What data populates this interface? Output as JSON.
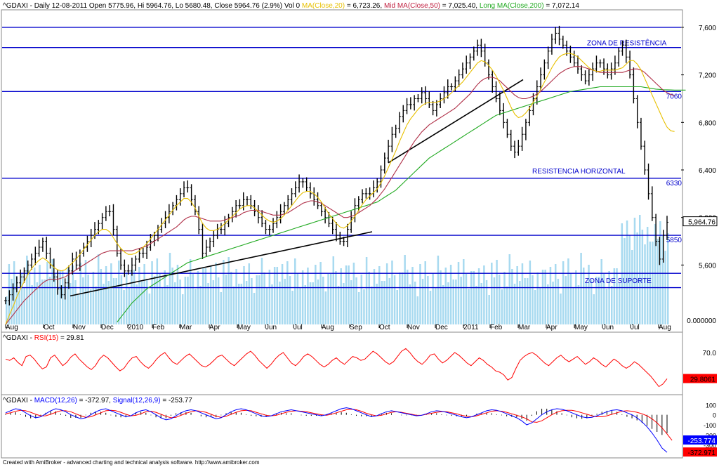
{
  "header": {
    "main": "^GDAXI - Daily 12-08-2011 Open 5775.96, Hi 5964.76, Lo 5680.48, Close 5964.76 (2.9%) Vol 0",
    "ma20": "MA(Close,20)",
    "ma20_val": " = 6,723.26,",
    "ma50": "Mid MA(Close,50)",
    "ma50_val": " = 7,025.40,",
    "ma200": "Long MA(Close,200)",
    "ma200_val": " = 7,072.14"
  },
  "rsi_header": {
    "name": "^GDAXI - ",
    "label": "RSI(15)",
    "val": " = 29.81"
  },
  "macd_header": {
    "name": "^GDAXI - ",
    "label": "MACD(12,26)",
    "val": " = -372.97, ",
    "sig": "Signal(12,26,9)",
    "sig_val": " = -253.77"
  },
  "footer": "Created with AmiBroker - advanced charting and technical analysis software. http://www.amibroker.com",
  "colors": {
    "price": "#000000",
    "ma20": "#e8c000",
    "ma50": "#b03048",
    "ma200": "#22aa22",
    "volume": "#a8daf0",
    "hline": "#0000cc",
    "rsi": "#ff0000",
    "macd": "#0000ff",
    "signal": "#ff0000",
    "trend": "#000000"
  },
  "chart_data": [
    {
      "type": "line",
      "title": "^GDAXI - Daily",
      "x_tick_labels": [
        "Aug",
        "Oct",
        "Nov",
        "Dec",
        "2010",
        "Feb",
        "Mar",
        "Apr",
        "May",
        "Jun",
        "Jul",
        "Aug",
        "Sep",
        "Oct",
        "Nov",
        "Dec",
        "2011",
        "Feb",
        "Mar",
        "Apr",
        "May",
        "Jun",
        "Jul",
        "Aug"
      ],
      "y_ticks": [
        "7,600",
        "7,200",
        "6,800",
        "6,400",
        "6,000",
        "5,600"
      ],
      "ylim": [
        5100,
        7700
      ],
      "last_close_label": "5,964.76",
      "volume_label": "0.000000",
      "horizontal_levels": [
        {
          "value": 7600,
          "label": ""
        },
        {
          "value": 7430,
          "label": "ZONA DE RESISTÊNCIA"
        },
        {
          "value": 7060,
          "label": "7060"
        },
        {
          "value": 6330,
          "label": "6330"
        },
        {
          "value": 5850,
          "label": "5850"
        },
        {
          "value": 5530,
          "label": "ZONA DE SUPORTE"
        },
        {
          "value": 5410,
          "label": ""
        }
      ],
      "annotations": [
        "RESISTENCIA HORIZONTAL"
      ],
      "series_names": [
        "MA(Close,20)",
        "Mid MA(Close,50)",
        "Long MA(Close,200)"
      ],
      "close": [
        5300,
        5350,
        5400,
        5450,
        5500,
        5550,
        5600,
        5650,
        5700,
        5750,
        5800,
        5700,
        5600,
        5500,
        5400,
        5350,
        5450,
        5550,
        5650,
        5600,
        5700,
        5750,
        5800,
        5850,
        5900,
        5950,
        6000,
        6050,
        6050,
        5900,
        5700,
        5600,
        5550,
        5550,
        5600,
        5650,
        5700,
        5700,
        5750,
        5800,
        5850,
        5900,
        5950,
        6000,
        6050,
        6100,
        6150,
        6200,
        6250,
        6250,
        6150,
        6050,
        5900,
        5700,
        5750,
        5800,
        5850,
        5900,
        5900,
        5950,
        6000,
        6050,
        6100,
        6100,
        6150,
        6150,
        6100,
        6050,
        6000,
        5950,
        5900,
        5900,
        5950,
        6000,
        6050,
        6100,
        6150,
        6200,
        6250,
        6300,
        6300,
        6250,
        6200,
        6150,
        6100,
        6050,
        6000,
        5950,
        5900,
        5850,
        5800,
        5800,
        5900,
        6000,
        6100,
        6150,
        6200,
        6200,
        6200,
        6250,
        6300,
        6400,
        6500,
        6600,
        6700,
        6750,
        6850,
        6900,
        6950,
        6950,
        7000,
        7000,
        7050,
        7000,
        6950,
        6900,
        6950,
        7000,
        7050,
        7100,
        7100,
        7150,
        7200,
        7250,
        7300,
        7350,
        7400,
        7450,
        7400,
        7300,
        7200,
        7100,
        7000,
        6900,
        6800,
        6700,
        6600,
        6550,
        6600,
        6700,
        6800,
        6900,
        7000,
        7100,
        7200,
        7300,
        7400,
        7500,
        7550,
        7500,
        7450,
        7400,
        7350,
        7300,
        7250,
        7200,
        7150,
        7200,
        7250,
        7300,
        7300,
        7250,
        7200,
        7250,
        7300,
        7400,
        7450,
        7350,
        7200,
        7000,
        6800,
        6600,
        6400,
        6200,
        6000,
        5800,
        5650,
        5850,
        5960
      ],
      "ma20": [
        5100,
        5180,
        5250,
        5330,
        5400,
        5460,
        5520,
        5570,
        5610,
        5640,
        5660,
        5640,
        5610,
        5580,
        5560,
        5550,
        5560,
        5590,
        5620,
        5650,
        5690,
        5730,
        5770,
        5810,
        5850,
        5880,
        5900,
        5900,
        5880,
        5830,
        5780,
        5740,
        5710,
        5690,
        5690,
        5700,
        5720,
        5750,
        5780,
        5820,
        5860,
        5900,
        5940,
        5980,
        6020,
        6060,
        6100,
        6130,
        6160,
        6160,
        6130,
        6080,
        6010,
        5950,
        5910,
        5890,
        5890,
        5900,
        5920,
        5950,
        5980,
        6010,
        6040,
        6070,
        6090,
        6100,
        6100,
        6080,
        6050,
        6020,
        5990,
        5970,
        5960,
        5970,
        5990,
        6020,
        6060,
        6100,
        6140,
        6180,
        6210,
        6220,
        6220,
        6200,
        6170,
        6130,
        6080,
        6030,
        5990,
        5950,
        5920,
        5910,
        5930,
        5970,
        6010,
        6060,
        6110,
        6150,
        6180,
        6210,
        6240,
        6290,
        6350,
        6420,
        6490,
        6560,
        6640,
        6710,
        6780,
        6830,
        6870,
        6910,
        6940,
        6960,
        6970,
        6970,
        6970,
        6980,
        7000,
        7020,
        7050,
        7080,
        7110,
        7140,
        7180,
        7220,
        7260,
        7300,
        7320,
        7310,
        7280,
        7240,
        7190,
        7130,
        7070,
        7000,
        6930,
        6870,
        6840,
        6850,
        6880,
        6920,
        6970,
        7020,
        7080,
        7140,
        7200,
        7260,
        7310,
        7350,
        7370,
        7380,
        7380,
        7370,
        7350,
        7320,
        7290,
        7260,
        7240,
        7230,
        7230,
        7240,
        7240,
        7240,
        7240,
        7250,
        7260,
        7290,
        7320,
        7320,
        7290,
        7240,
        7170,
        7100,
        7030,
        6960,
        6890,
        6820,
        6760,
        6730,
        6723
      ],
      "ma50": [
        5100,
        5140,
        5180,
        5220,
        5260,
        5300,
        5330,
        5360,
        5390,
        5420,
        5450,
        5470,
        5480,
        5480,
        5480,
        5490,
        5500,
        5520,
        5540,
        5560,
        5580,
        5600,
        5620,
        5640,
        5660,
        5680,
        5700,
        5710,
        5720,
        5720,
        5720,
        5720,
        5720,
        5720,
        5720,
        5730,
        5740,
        5750,
        5760,
        5780,
        5800,
        5820,
        5840,
        5860,
        5880,
        5900,
        5920,
        5950,
        5980,
        6000,
        6010,
        6010,
        6000,
        5990,
        5980,
        5970,
        5970,
        5970,
        5970,
        5980,
        5990,
        6000,
        6010,
        6020,
        6040,
        6050,
        6060,
        6060,
        6060,
        6050,
        6040,
        6030,
        6020,
        6020,
        6020,
        6030,
        6040,
        6060,
        6080,
        6100,
        6120,
        6130,
        6140,
        6140,
        6130,
        6120,
        6100,
        6080,
        6060,
        6040,
        6020,
        6000,
        6000,
        6010,
        6020,
        6040,
        6060,
        6080,
        6100,
        6130,
        6160,
        6200,
        6240,
        6290,
        6340,
        6390,
        6440,
        6490,
        6540,
        6590,
        6640,
        6680,
        6720,
        6750,
        6780,
        6800,
        6820,
        6840,
        6860,
        6880,
        6900,
        6920,
        6950,
        6980,
        7010,
        7040,
        7080,
        7120,
        7150,
        7170,
        7180,
        7180,
        7170,
        7150,
        7120,
        7090,
        7060,
        7030,
        7010,
        7000,
        7000,
        7010,
        7020,
        7040,
        7060,
        7090,
        7120,
        7150,
        7180,
        7210,
        7230,
        7250,
        7260,
        7270,
        7270,
        7270,
        7260,
        7250,
        7240,
        7230,
        7220,
        7220,
        7220,
        7220,
        7220,
        7220,
        7220,
        7230,
        7240,
        7250,
        7250,
        7240,
        7220,
        7190,
        7160,
        7130,
        7100,
        7070,
        7050,
        7035,
        7025
      ],
      "ma200": [
        null,
        null,
        null,
        null,
        null,
        null,
        null,
        null,
        null,
        null,
        null,
        null,
        null,
        null,
        null,
        null,
        null,
        null,
        null,
        null,
        null,
        null,
        null,
        null,
        null,
        null,
        null,
        null,
        null,
        null,
        5120,
        5160,
        5200,
        5240,
        5280,
        5310,
        5340,
        5370,
        5400,
        5420,
        5440,
        5460,
        5480,
        5500,
        5520,
        5540,
        5560,
        5580,
        5600,
        5620,
        5630,
        5640,
        5650,
        5660,
        5670,
        5680,
        5690,
        5700,
        5710,
        5720,
        5730,
        5740,
        5750,
        5760,
        5770,
        5780,
        5790,
        5800,
        5810,
        5820,
        5830,
        5840,
        5850,
        5860,
        5870,
        5880,
        5890,
        5900,
        5910,
        5920,
        5930,
        5940,
        5950,
        5960,
        5970,
        5980,
        5990,
        6000,
        6010,
        6020,
        6030,
        6040,
        6050,
        6060,
        6070,
        6080,
        6090,
        6100,
        6110,
        6120,
        6130,
        6150,
        6170,
        6190,
        6210,
        6230,
        6260,
        6290,
        6320,
        6350,
        6380,
        6410,
        6440,
        6470,
        6500,
        6520,
        6540,
        6560,
        6580,
        6600,
        6620,
        6640,
        6660,
        6680,
        6700,
        6720,
        6740,
        6760,
        6780,
        6800,
        6820,
        6840,
        6860,
        6870,
        6880,
        6890,
        6900,
        6910,
        6920,
        6930,
        6940,
        6950,
        6960,
        6970,
        6980,
        6990,
        7000,
        7010,
        7020,
        7030,
        7040,
        7050,
        7060,
        7065,
        7070,
        7075,
        7080,
        7085,
        7090,
        7095,
        7100,
        7100,
        7100,
        7100,
        7100,
        7100,
        7100,
        7100,
        7100,
        7100,
        7100,
        7100,
        7095,
        7090,
        7085,
        7080,
        7078,
        7075,
        7074,
        7073,
        7072,
        7072,
        7072,
        7072
      ]
    },
    {
      "type": "line",
      "title": "RSI(15)",
      "value": 29.81,
      "last_label": "29.8061",
      "y_ticks": [
        "70.0",
        "30.0"
      ],
      "ylim": [
        10,
        85
      ],
      "values": [
        60,
        58,
        62,
        55,
        50,
        64,
        66,
        60,
        52,
        45,
        48,
        62,
        66,
        58,
        50,
        55,
        63,
        68,
        60,
        54,
        48,
        44,
        50,
        60,
        66,
        62,
        55,
        48,
        42,
        46,
        55,
        62,
        64,
        56,
        50,
        46,
        52,
        60,
        66,
        70,
        62,
        55,
        52,
        58,
        64,
        68,
        62,
        56,
        50,
        48,
        52,
        58,
        64,
        66,
        60,
        54,
        50,
        56,
        62,
        68,
        72,
        66,
        58,
        52,
        46,
        52,
        60,
        66,
        70,
        62,
        54,
        50,
        56,
        64,
        68,
        64,
        58,
        52,
        48,
        52,
        58,
        62,
        56,
        52,
        58,
        64,
        62,
        58,
        60,
        66,
        72,
        68,
        62,
        56,
        52,
        56,
        64,
        72,
        76,
        70,
        62,
        56,
        52,
        58,
        66,
        68,
        60,
        54,
        58,
        64,
        70,
        66,
        60,
        54,
        50,
        56,
        62,
        58,
        52,
        48,
        42,
        40,
        36,
        28,
        32,
        46,
        58,
        64,
        68,
        70,
        66,
        60,
        54,
        50,
        56,
        62,
        66,
        60,
        56,
        60,
        64,
        58,
        52,
        56,
        62,
        58,
        52,
        48,
        54,
        60,
        56,
        50,
        46,
        50,
        56,
        52,
        46,
        40,
        34,
        26,
        18,
        22,
        30
      ]
    },
    {
      "type": "line",
      "title": "MACD(12,26)",
      "macd_value": -372.97,
      "signal_value": -253.77,
      "last_labels": [
        "-253.774",
        "-372.971"
      ],
      "y_ticks": [
        "100",
        "0",
        "-100",
        "-200",
        "-300"
      ],
      "ylim": [
        -400,
        130
      ],
      "series": [
        {
          "name": "MACD(12,26)",
          "values": [
            20,
            40,
            60,
            50,
            20,
            -10,
            -30,
            -20,
            10,
            40,
            60,
            50,
            30,
            0,
            -20,
            -40,
            -30,
            0,
            30,
            50,
            60,
            40,
            20,
            0,
            -20,
            -10,
            20,
            40,
            50,
            30,
            0,
            -30,
            -50,
            -40,
            -10,
            20,
            40,
            50,
            40,
            20,
            0,
            -20,
            -40,
            -30,
            0,
            30,
            50,
            60,
            50,
            30,
            10,
            -10,
            -20,
            -10,
            10,
            30,
            40,
            50,
            40,
            30,
            20,
            10,
            0,
            -10,
            0,
            20,
            40,
            60,
            70,
            60,
            40,
            20,
            0,
            -20,
            -10,
            10,
            30,
            40,
            30,
            20,
            10,
            0,
            -10,
            -5,
            10,
            30,
            40,
            35,
            25,
            10,
            -5,
            -20,
            -30,
            -20,
            0,
            20,
            40,
            50,
            45,
            30,
            10,
            -10,
            -30,
            -60,
            -100,
            -80,
            -40,
            0,
            30,
            50,
            60,
            55,
            40,
            20,
            0,
            -20,
            -30,
            -25,
            -10,
            10,
            30,
            45,
            50,
            40,
            20,
            0,
            -30,
            -70,
            -120,
            -180,
            -250,
            -330,
            -373
          ]
        },
        {
          "name": "Signal(12,26,9)",
          "values": [
            10,
            20,
            35,
            45,
            40,
            25,
            5,
            -10,
            -10,
            5,
            25,
            40,
            40,
            30,
            10,
            -10,
            -25,
            -20,
            0,
            20,
            40,
            45,
            40,
            25,
            5,
            -10,
            -5,
            10,
            30,
            35,
            25,
            5,
            -15,
            -30,
            -25,
            -5,
            15,
            30,
            40,
            35,
            25,
            5,
            -15,
            -25,
            -15,
            5,
            25,
            40,
            45,
            40,
            25,
            10,
            -5,
            -10,
            -5,
            10,
            25,
            35,
            40,
            35,
            30,
            20,
            10,
            0,
            -5,
            5,
            20,
            35,
            50,
            55,
            50,
            35,
            15,
            0,
            -10,
            -5,
            10,
            25,
            30,
            25,
            15,
            5,
            -5,
            -5,
            5,
            15,
            25,
            30,
            30,
            20,
            10,
            -5,
            -15,
            -20,
            -10,
            5,
            20,
            35,
            40,
            35,
            25,
            10,
            -5,
            -20,
            -40,
            -70,
            -75,
            -60,
            -30,
            0,
            25,
            40,
            45,
            45,
            35,
            20,
            5,
            -10,
            -20,
            -20,
            -10,
            5,
            20,
            35,
            40,
            35,
            25,
            10,
            -10,
            -40,
            -80,
            -130,
            -190,
            -254
          ]
        }
      ]
    }
  ]
}
